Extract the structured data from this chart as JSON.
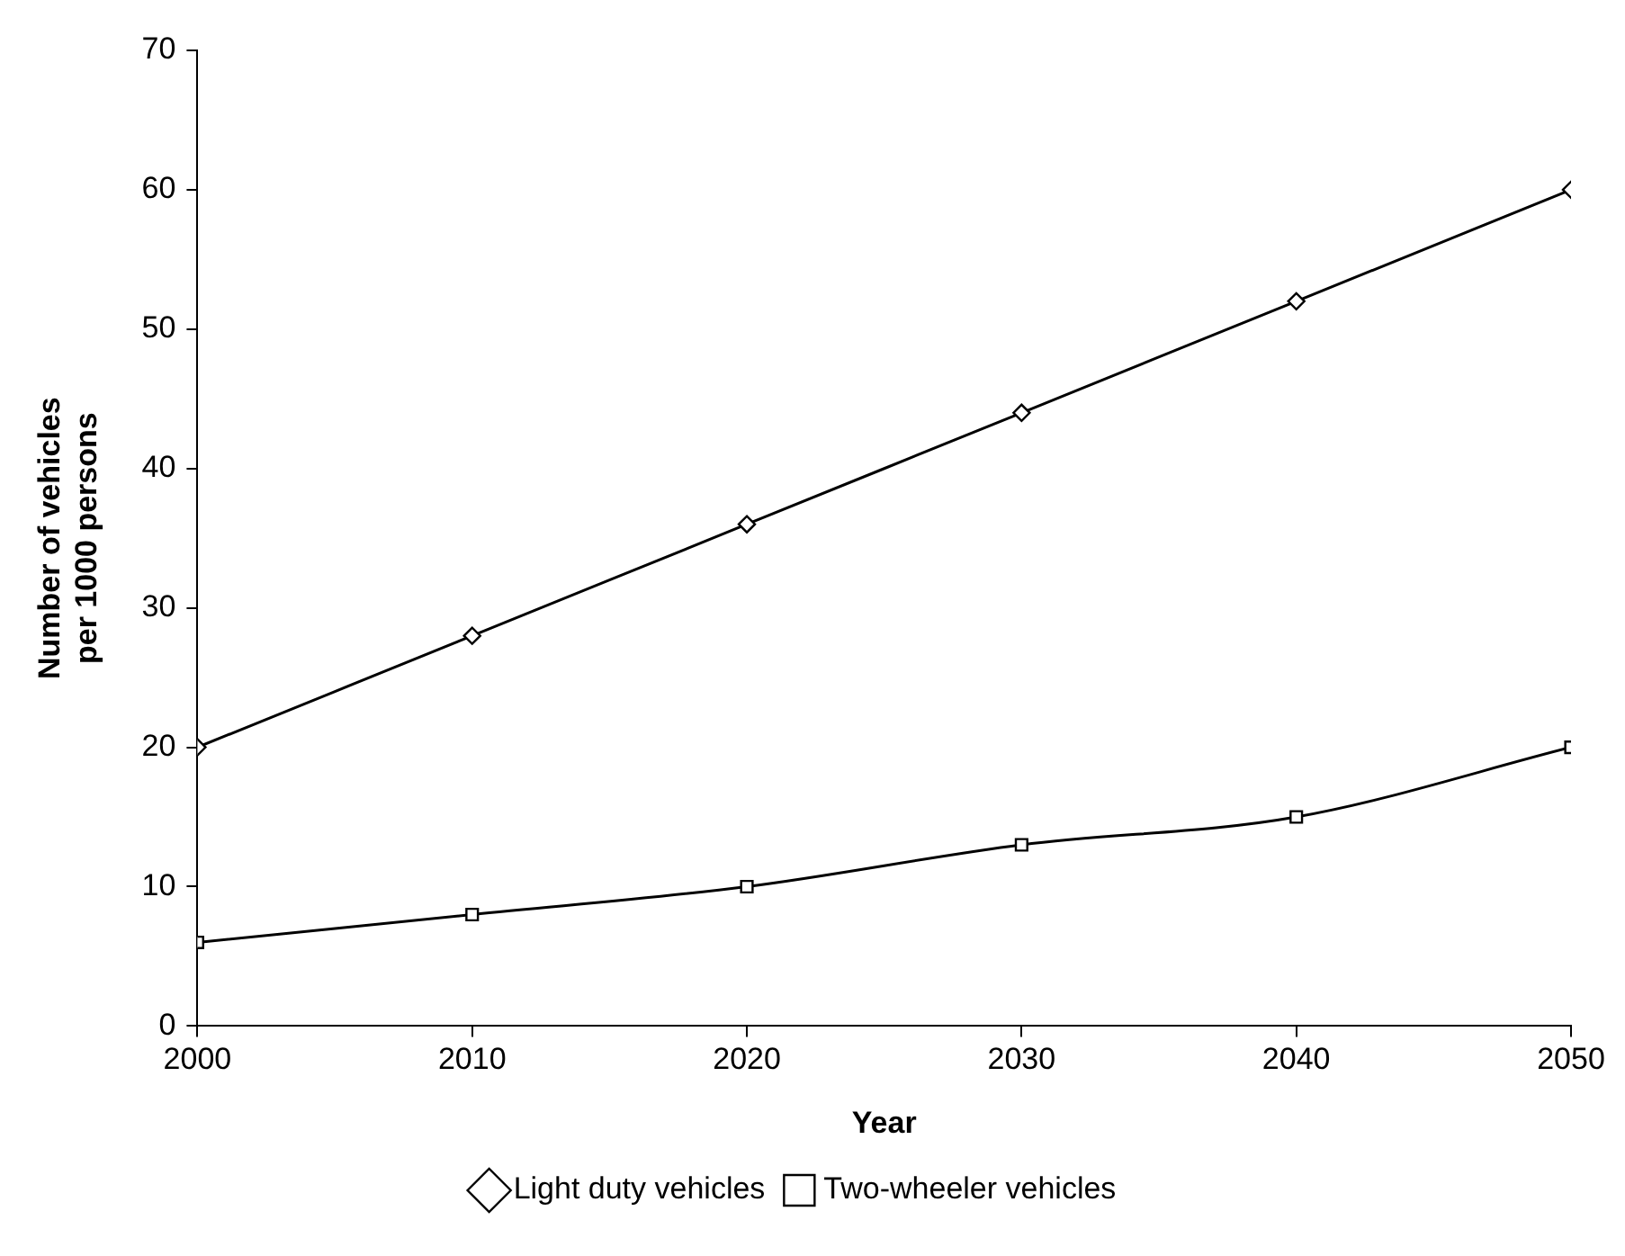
{
  "chart_data": {
    "type": "line",
    "xlabel": "Year",
    "ylabel": "Number of vehicles\nper 1000 persons",
    "x": [
      2000,
      2010,
      2020,
      2030,
      2040,
      2050
    ],
    "series": [
      {
        "name": "Light duty vehicles",
        "color": "#000000",
        "marker": "diamond",
        "values": [
          20,
          28,
          36,
          44,
          52,
          60
        ]
      },
      {
        "name": "Two-wheeler vehicles",
        "color": "#000000",
        "marker": "square",
        "values": [
          6,
          8,
          10,
          13,
          15,
          20
        ]
      }
    ],
    "xlim": [
      2000,
      2050
    ],
    "xticks": [
      2000,
      2010,
      2020,
      2030,
      2040,
      2050
    ],
    "ylim": [
      0,
      70
    ],
    "yticks": [
      0,
      10,
      20,
      30,
      40,
      50,
      60,
      70
    ],
    "grid": false,
    "legend": "bottom",
    "line_style": "solid"
  }
}
